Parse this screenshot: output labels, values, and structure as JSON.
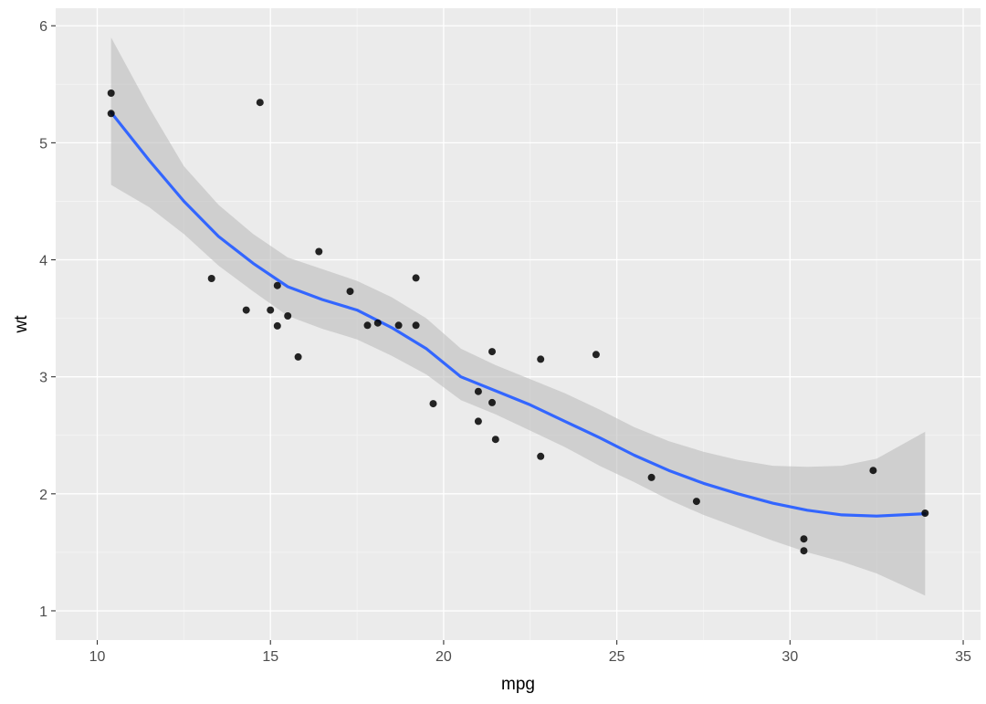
{
  "chart_data": {
    "type": "scatter",
    "title": "",
    "xlabel": "mpg",
    "ylabel": "wt",
    "xlim": [
      8.8,
      35.5
    ],
    "ylim": [
      0.75,
      6.15
    ],
    "x_ticks": [
      10,
      15,
      20,
      25,
      30,
      35
    ],
    "y_ticks": [
      1,
      2,
      3,
      4,
      5,
      6
    ],
    "x_tick_labels": [
      "10",
      "15",
      "20",
      "25",
      "30",
      "35"
    ],
    "y_tick_labels": [
      "1",
      "2",
      "3",
      "4",
      "5",
      "6"
    ],
    "grid": true,
    "legend": "none",
    "colors": {
      "panel": "#ebebeb",
      "grid": "#ffffff",
      "points": "#000000",
      "smooth_line": "#3366ff",
      "ribbon": "#bdbdbd"
    },
    "points": [
      {
        "x": 21.0,
        "y": 2.62
      },
      {
        "x": 21.0,
        "y": 2.875
      },
      {
        "x": 22.8,
        "y": 2.32
      },
      {
        "x": 21.4,
        "y": 3.215
      },
      {
        "x": 18.7,
        "y": 3.44
      },
      {
        "x": 18.1,
        "y": 3.46
      },
      {
        "x": 14.3,
        "y": 3.57
      },
      {
        "x": 24.4,
        "y": 3.19
      },
      {
        "x": 22.8,
        "y": 3.15
      },
      {
        "x": 19.2,
        "y": 3.44
      },
      {
        "x": 17.8,
        "y": 3.44
      },
      {
        "x": 16.4,
        "y": 4.07
      },
      {
        "x": 17.3,
        "y": 3.73
      },
      {
        "x": 15.2,
        "y": 3.78
      },
      {
        "x": 10.4,
        "y": 5.25
      },
      {
        "x": 10.4,
        "y": 5.424
      },
      {
        "x": 14.7,
        "y": 5.345
      },
      {
        "x": 32.4,
        "y": 2.2
      },
      {
        "x": 30.4,
        "y": 1.615
      },
      {
        "x": 33.9,
        "y": 1.835
      },
      {
        "x": 21.5,
        "y": 2.465
      },
      {
        "x": 15.5,
        "y": 3.52
      },
      {
        "x": 15.2,
        "y": 3.435
      },
      {
        "x": 13.3,
        "y": 3.84
      },
      {
        "x": 19.2,
        "y": 3.845
      },
      {
        "x": 27.3,
        "y": 1.935
      },
      {
        "x": 26.0,
        "y": 2.14
      },
      {
        "x": 30.4,
        "y": 1.513
      },
      {
        "x": 15.8,
        "y": 3.17
      },
      {
        "x": 19.7,
        "y": 2.77
      },
      {
        "x": 15.0,
        "y": 3.57
      },
      {
        "x": 21.4,
        "y": 2.78
      }
    ],
    "smooth": {
      "x": [
        10.4,
        11.5,
        12.5,
        13.5,
        14.5,
        15.5,
        16.5,
        17.5,
        18.5,
        19.5,
        20.5,
        21.5,
        22.5,
        23.5,
        24.5,
        25.5,
        26.5,
        27.5,
        28.5,
        29.5,
        30.5,
        31.5,
        32.5,
        33.9
      ],
      "y": [
        5.26,
        4.85,
        4.5,
        4.2,
        3.97,
        3.77,
        3.66,
        3.57,
        3.42,
        3.24,
        3.0,
        2.88,
        2.76,
        2.62,
        2.48,
        2.33,
        2.2,
        2.09,
        2.0,
        1.92,
        1.86,
        1.82,
        1.81,
        1.83
      ],
      "lower": [
        4.64,
        4.45,
        4.22,
        3.95,
        3.73,
        3.52,
        3.41,
        3.32,
        3.18,
        3.02,
        2.8,
        2.68,
        2.54,
        2.4,
        2.24,
        2.1,
        1.95,
        1.82,
        1.71,
        1.6,
        1.5,
        1.42,
        1.32,
        1.13
      ],
      "upper": [
        5.9,
        5.3,
        4.8,
        4.47,
        4.22,
        4.02,
        3.92,
        3.82,
        3.68,
        3.5,
        3.24,
        3.1,
        2.98,
        2.86,
        2.72,
        2.57,
        2.45,
        2.36,
        2.29,
        2.24,
        2.23,
        2.24,
        2.3,
        2.53
      ]
    }
  }
}
